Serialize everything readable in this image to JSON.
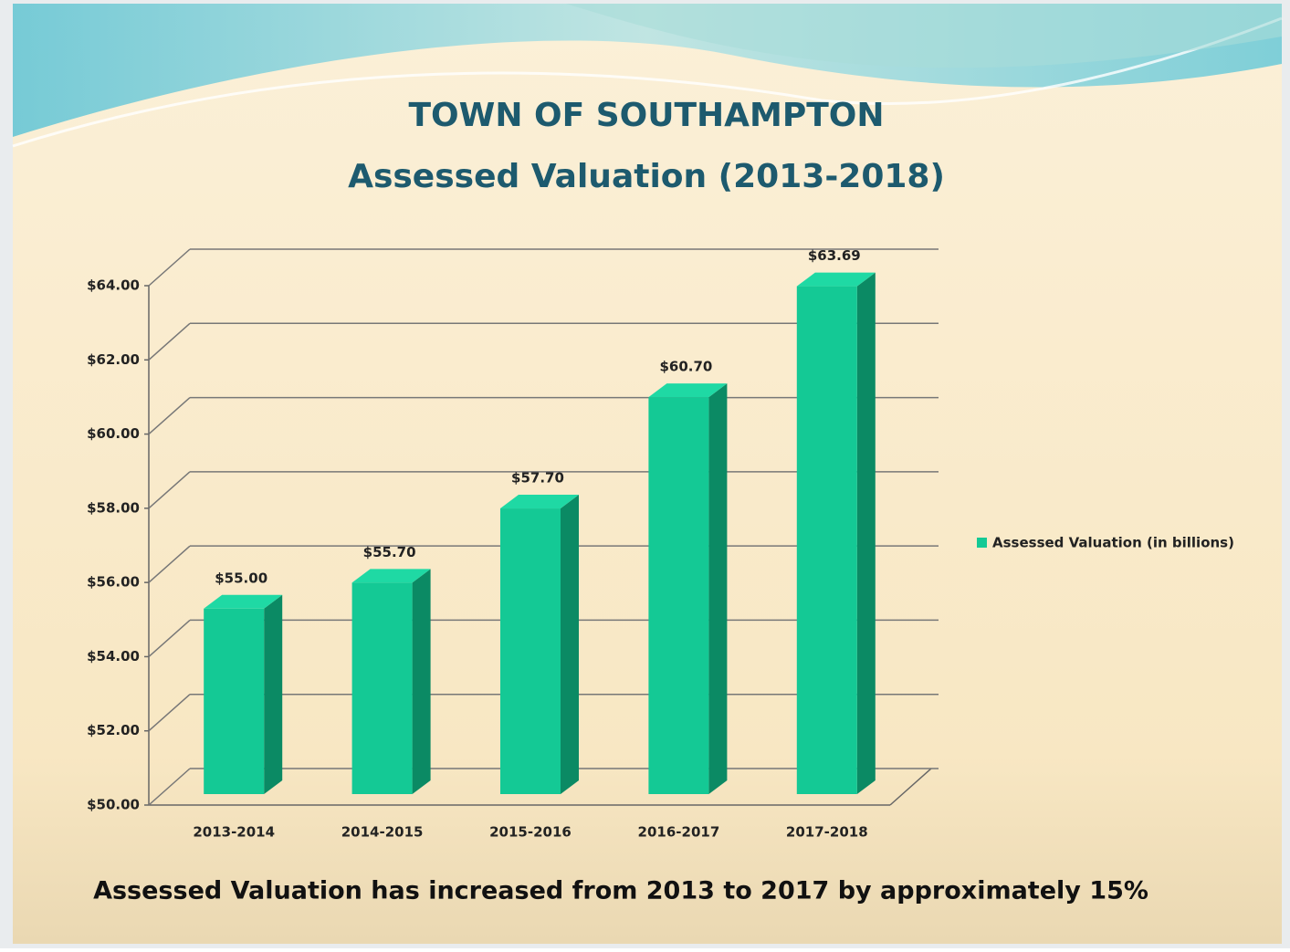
{
  "chart_data": {
    "type": "bar",
    "title": "TOWN OF SOUTHAMPTON",
    "subtitle": "Assessed Valuation (2013-2018)",
    "categories": [
      "2013-2014",
      "2014-2015",
      "2015-2016",
      "2016-2017",
      "2017-2018"
    ],
    "series": [
      {
        "name": "Assessed Valuation (in billions)",
        "color": "#14c995",
        "values": [
          55.0,
          55.7,
          57.7,
          60.7,
          63.69
        ],
        "value_labels": [
          "$55.00",
          "$55.70",
          "$57.70",
          "$60.70",
          "$63.69"
        ]
      }
    ],
    "ylim": [
      50,
      64
    ],
    "yticks": [
      {
        "value": 50,
        "label": "$50.00"
      },
      {
        "value": 52,
        "label": "$52.00"
      },
      {
        "value": 54,
        "label": "$54.00"
      },
      {
        "value": 56,
        "label": "$56.00"
      },
      {
        "value": 58,
        "label": "$58.00"
      },
      {
        "value": 60,
        "label": "$60.00"
      },
      {
        "value": 62,
        "label": "$62.00"
      },
      {
        "value": 64,
        "label": "$64.00"
      }
    ],
    "grid": true,
    "legend": "right",
    "annotation": "Assessed Valuation has increased from 2013 to 2017 by approximately 15%"
  }
}
